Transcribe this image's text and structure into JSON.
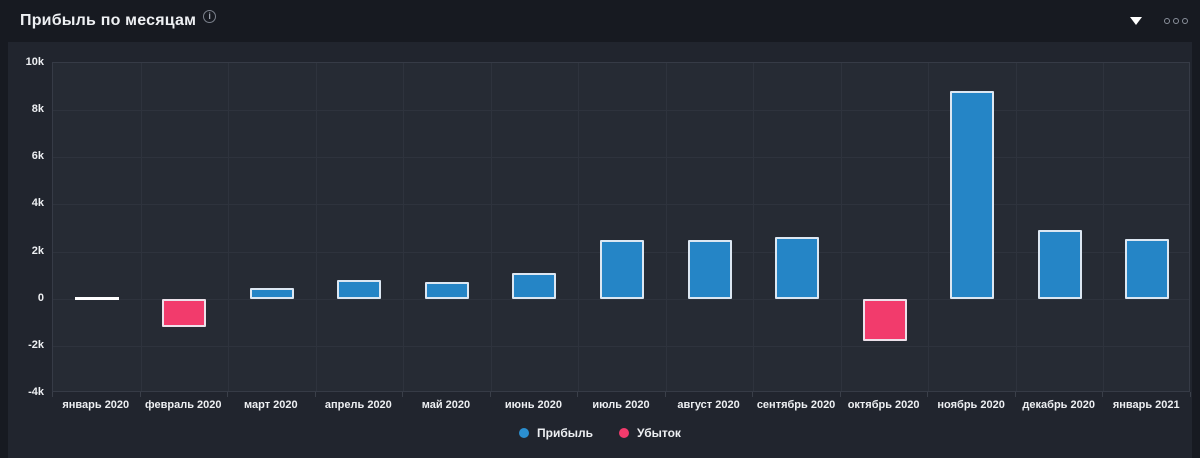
{
  "header": {
    "title": "Прибыль по месяцам",
    "info_glyph": "i"
  },
  "chart_data": {
    "type": "bar",
    "title": "Прибыль по месяцам",
    "categories": [
      "январь 2020",
      "февраль 2020",
      "март 2020",
      "апрель 2020",
      "май 2020",
      "июнь 2020",
      "июль 2020",
      "август 2020",
      "сентябрь 2020",
      "октябрь 2020",
      "ноябрь 2020",
      "декабрь 2020",
      "январь 2021"
    ],
    "values": [
      0,
      -1200,
      450,
      800,
      720,
      1100,
      2500,
      2480,
      2620,
      -1800,
      8800,
      2900,
      2530
    ],
    "ylim": [
      -4000,
      10000
    ],
    "ytick_values": [
      10000,
      8000,
      6000,
      4000,
      2000,
      0,
      -2000,
      -4000
    ],
    "ytick_labels": [
      "10k",
      "8k",
      "6k",
      "4k",
      "2k",
      "0",
      "-2k",
      "-4k"
    ],
    "xlabel": "",
    "ylabel": "",
    "grid": true,
    "legend_position": "bottom",
    "legend": [
      {
        "label": "Прибыль",
        "color": "#2b8fd0"
      },
      {
        "label": "Убыток",
        "color": "#f23b6c"
      }
    ],
    "colors": {
      "positive_fill": "#2585c6",
      "negative_fill": "#f23b6c",
      "bar_border": "rgba(236,240,245,0.92)"
    }
  }
}
